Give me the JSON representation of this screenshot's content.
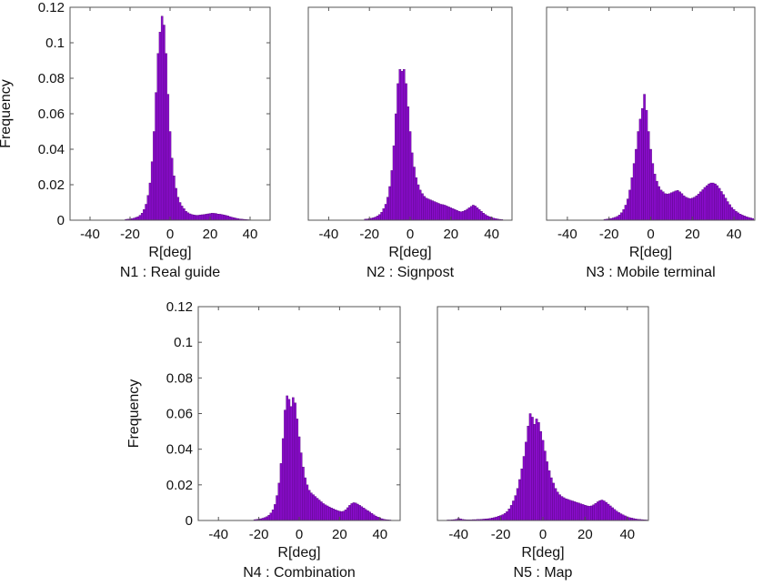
{
  "chart_data": [
    {
      "type": "bar",
      "caption": "N1 : Real guide",
      "xlabel": "R[deg]",
      "ylabel": "Frequency",
      "xlim": [
        -50,
        50
      ],
      "ylim": [
        0,
        0.12
      ],
      "xticks": [
        -40,
        -20,
        0,
        20,
        40
      ],
      "yticks": [
        0,
        0.02,
        0.04,
        0.06,
        0.08,
        0.1,
        0.12
      ],
      "show_yticks": true,
      "color": "#8a0ccc",
      "bin_width": 1,
      "x": [
        -22,
        -21,
        -20,
        -19,
        -18,
        -17,
        -16,
        -15,
        -14,
        -13,
        -12,
        -11,
        -10,
        -9,
        -8,
        -7,
        -6,
        -5,
        -4,
        -3,
        -2,
        -1,
        0,
        1,
        2,
        3,
        4,
        5,
        6,
        7,
        8,
        9,
        10,
        11,
        12,
        13,
        14,
        15,
        16,
        17,
        18,
        19,
        20,
        21,
        22,
        23,
        24,
        25,
        26,
        27,
        28,
        29,
        30,
        31,
        32,
        33,
        34,
        35,
        36,
        37,
        38,
        39
      ],
      "values": [
        0.0005,
        0.0006,
        0.0007,
        0.0009,
        0.0012,
        0.0016,
        0.002,
        0.0028,
        0.004,
        0.006,
        0.009,
        0.014,
        0.021,
        0.033,
        0.05,
        0.072,
        0.094,
        0.106,
        0.115,
        0.11,
        0.094,
        0.071,
        0.05,
        0.035,
        0.025,
        0.018,
        0.013,
        0.01,
        0.008,
        0.0065,
        0.005,
        0.0042,
        0.0036,
        0.0032,
        0.003,
        0.0028,
        0.0028,
        0.003,
        0.0031,
        0.0032,
        0.0034,
        0.0036,
        0.0038,
        0.004,
        0.0039,
        0.0038,
        0.0035,
        0.0034,
        0.0032,
        0.003,
        0.0027,
        0.0024,
        0.002,
        0.0017,
        0.0014,
        0.0011,
        0.0009,
        0.0007,
        0.0006,
        0.0005,
        0.0004,
        0.0003
      ]
    },
    {
      "type": "bar",
      "caption": "N2 : Signpost",
      "xlabel": "R[deg]",
      "ylabel": "",
      "xlim": [
        -50,
        50
      ],
      "ylim": [
        0,
        0.12
      ],
      "xticks": [
        -40,
        -20,
        0,
        20,
        40
      ],
      "yticks": [],
      "show_yticks": false,
      "color": "#8a0ccc",
      "bin_width": 1,
      "x": [
        -22,
        -21,
        -20,
        -19,
        -18,
        -17,
        -16,
        -15,
        -14,
        -13,
        -12,
        -11,
        -10,
        -9,
        -8,
        -7,
        -6,
        -5,
        -4,
        -3,
        -2,
        -1,
        0,
        1,
        2,
        3,
        4,
        5,
        6,
        7,
        8,
        9,
        10,
        11,
        12,
        13,
        14,
        15,
        16,
        17,
        18,
        19,
        20,
        21,
        22,
        23,
        24,
        25,
        26,
        27,
        28,
        29,
        30,
        31,
        32,
        33,
        34,
        35,
        36,
        37,
        38,
        39,
        40,
        41,
        42,
        43,
        44,
        45
      ],
      "values": [
        0.0006,
        0.0007,
        0.0009,
        0.0011,
        0.0014,
        0.0018,
        0.0024,
        0.0032,
        0.0045,
        0.0065,
        0.009,
        0.013,
        0.019,
        0.028,
        0.042,
        0.06,
        0.077,
        0.085,
        0.084,
        0.085,
        0.077,
        0.064,
        0.05,
        0.038,
        0.03,
        0.024,
        0.02,
        0.017,
        0.015,
        0.0135,
        0.0125,
        0.012,
        0.0115,
        0.011,
        0.0105,
        0.01,
        0.0095,
        0.009,
        0.0088,
        0.0085,
        0.008,
        0.0075,
        0.007,
        0.0065,
        0.006,
        0.0055,
        0.005,
        0.0048,
        0.005,
        0.0055,
        0.0062,
        0.007,
        0.0078,
        0.0085,
        0.008,
        0.007,
        0.006,
        0.005,
        0.004,
        0.0032,
        0.0025,
        0.002,
        0.0016,
        0.0012,
        0.0009,
        0.0007,
        0.0005,
        0.0004
      ]
    },
    {
      "type": "bar",
      "caption": "N3 : Mobile terminal",
      "xlabel": "R[deg]",
      "ylabel": "",
      "xlim": [
        -50,
        50
      ],
      "ylim": [
        0,
        0.12
      ],
      "xticks": [
        -40,
        -20,
        0,
        20,
        40
      ],
      "yticks": [],
      "show_yticks": false,
      "color": "#8a0ccc",
      "bin_width": 1,
      "x": [
        -22,
        -21,
        -20,
        -19,
        -18,
        -17,
        -16,
        -15,
        -14,
        -13,
        -12,
        -11,
        -10,
        -9,
        -8,
        -7,
        -6,
        -5,
        -4,
        -3,
        -2,
        -1,
        0,
        1,
        2,
        3,
        4,
        5,
        6,
        7,
        8,
        9,
        10,
        11,
        12,
        13,
        14,
        15,
        16,
        17,
        18,
        19,
        20,
        21,
        22,
        23,
        24,
        25,
        26,
        27,
        28,
        29,
        30,
        31,
        32,
        33,
        34,
        35,
        36,
        37,
        38,
        39,
        40,
        41,
        42,
        43,
        44,
        45,
        46,
        47,
        48,
        49
      ],
      "values": [
        0.0005,
        0.0006,
        0.0008,
        0.001,
        0.0013,
        0.0017,
        0.0022,
        0.003,
        0.0042,
        0.006,
        0.0085,
        0.012,
        0.017,
        0.024,
        0.032,
        0.04,
        0.05,
        0.057,
        0.063,
        0.071,
        0.062,
        0.05,
        0.04,
        0.032,
        0.026,
        0.022,
        0.019,
        0.017,
        0.016,
        0.015,
        0.0148,
        0.015,
        0.0155,
        0.016,
        0.0165,
        0.0168,
        0.016,
        0.015,
        0.0138,
        0.013,
        0.0125,
        0.0122,
        0.0125,
        0.013,
        0.0138,
        0.0148,
        0.016,
        0.0172,
        0.0185,
        0.0195,
        0.0205,
        0.021,
        0.021,
        0.0205,
        0.0195,
        0.018,
        0.0162,
        0.0145,
        0.0125,
        0.0105,
        0.0088,
        0.0072,
        0.006,
        0.005,
        0.0042,
        0.0035,
        0.0029,
        0.0024,
        0.002,
        0.0016,
        0.0013,
        0.001
      ]
    },
    {
      "type": "bar",
      "caption": "N4 : Combination",
      "xlabel": "R[deg]",
      "ylabel": "Frequency",
      "xlim": [
        -50,
        50
      ],
      "ylim": [
        0,
        0.12
      ],
      "xticks": [
        -40,
        -20,
        0,
        20,
        40
      ],
      "yticks": [
        0,
        0.02,
        0.04,
        0.06,
        0.08,
        0.1,
        0.12
      ],
      "show_yticks": true,
      "color": "#8a0ccc",
      "bin_width": 1,
      "x": [
        -22,
        -21,
        -20,
        -19,
        -18,
        -17,
        -16,
        -15,
        -14,
        -13,
        -12,
        -11,
        -10,
        -9,
        -8,
        -7,
        -6,
        -5,
        -4,
        -3,
        -2,
        -1,
        0,
        1,
        2,
        3,
        4,
        5,
        6,
        7,
        8,
        9,
        10,
        11,
        12,
        13,
        14,
        15,
        16,
        17,
        18,
        19,
        20,
        21,
        22,
        23,
        24,
        25,
        26,
        27,
        28,
        29,
        30,
        31,
        32,
        33,
        34,
        35,
        36,
        37,
        38,
        39,
        40,
        41,
        42,
        43,
        44,
        45
      ],
      "values": [
        0.0005,
        0.0006,
        0.0008,
        0.001,
        0.0013,
        0.0017,
        0.0022,
        0.003,
        0.0042,
        0.006,
        0.009,
        0.014,
        0.021,
        0.032,
        0.046,
        0.062,
        0.07,
        0.068,
        0.064,
        0.069,
        0.066,
        0.057,
        0.047,
        0.038,
        0.03,
        0.024,
        0.02,
        0.017,
        0.0155,
        0.0145,
        0.0135,
        0.0125,
        0.0115,
        0.0105,
        0.0095,
        0.0088,
        0.0082,
        0.0076,
        0.007,
        0.0065,
        0.006,
        0.0056,
        0.0052,
        0.005,
        0.0052,
        0.006,
        0.0072,
        0.0085,
        0.0095,
        0.01,
        0.0098,
        0.0092,
        0.0085,
        0.0078,
        0.007,
        0.0062,
        0.0055,
        0.0048,
        0.004,
        0.0032,
        0.0025,
        0.0019,
        0.0014,
        0.001,
        0.0007,
        0.0005,
        0.0004,
        0.0003
      ]
    },
    {
      "type": "bar",
      "caption": "N5 : Map",
      "xlabel": "R[deg]",
      "ylabel": "",
      "xlim": [
        -50,
        50
      ],
      "ylim": [
        0,
        0.12
      ],
      "xticks": [
        -40,
        -20,
        0,
        20,
        40
      ],
      "yticks": [],
      "show_yticks": false,
      "color": "#8a0ccc",
      "bin_width": 1,
      "x": [
        -45,
        -44,
        -43,
        -42,
        -41,
        -40,
        -39,
        -38,
        -37,
        -36,
        -35,
        -34,
        -33,
        -32,
        -31,
        -30,
        -29,
        -28,
        -27,
        -26,
        -25,
        -24,
        -23,
        -22,
        -21,
        -20,
        -19,
        -18,
        -17,
        -16,
        -15,
        -14,
        -13,
        -12,
        -11,
        -10,
        -9,
        -8,
        -7,
        -6,
        -5,
        -4,
        -3,
        -2,
        -1,
        0,
        1,
        2,
        3,
        4,
        5,
        6,
        7,
        8,
        9,
        10,
        11,
        12,
        13,
        14,
        15,
        16,
        17,
        18,
        19,
        20,
        21,
        22,
        23,
        24,
        25,
        26,
        27,
        28,
        29,
        30,
        31,
        32,
        33,
        34,
        35,
        36,
        37,
        38,
        39,
        40,
        41,
        42,
        43,
        44,
        45,
        46,
        47,
        48,
        49
      ],
      "values": [
        0.0003,
        0.0003,
        0.0004,
        0.0005,
        0.0007,
        0.0012,
        0.0009,
        0.0006,
        0.0005,
        0.0004,
        0.0004,
        0.0004,
        0.0005,
        0.0005,
        0.0006,
        0.0006,
        0.0007,
        0.0008,
        0.0009,
        0.001,
        0.0012,
        0.0014,
        0.0017,
        0.002,
        0.0024,
        0.0028,
        0.0033,
        0.004,
        0.005,
        0.0065,
        0.0085,
        0.011,
        0.014,
        0.018,
        0.023,
        0.029,
        0.036,
        0.044,
        0.053,
        0.06,
        0.058,
        0.054,
        0.057,
        0.055,
        0.05,
        0.045,
        0.039,
        0.033,
        0.028,
        0.024,
        0.021,
        0.018,
        0.016,
        0.0145,
        0.0135,
        0.0128,
        0.0122,
        0.0118,
        0.0114,
        0.011,
        0.0106,
        0.0102,
        0.0098,
        0.0094,
        0.009,
        0.0086,
        0.0082,
        0.008,
        0.0082,
        0.0088,
        0.0096,
        0.0105,
        0.0112,
        0.0115,
        0.011,
        0.0102,
        0.0092,
        0.0082,
        0.0072,
        0.0062,
        0.0053,
        0.0045,
        0.0038,
        0.0032,
        0.0026,
        0.0021,
        0.0017,
        0.0014,
        0.0011,
        0.0009,
        0.0007,
        0.0006,
        0.0005,
        0.0004,
        0.0003
      ]
    }
  ]
}
